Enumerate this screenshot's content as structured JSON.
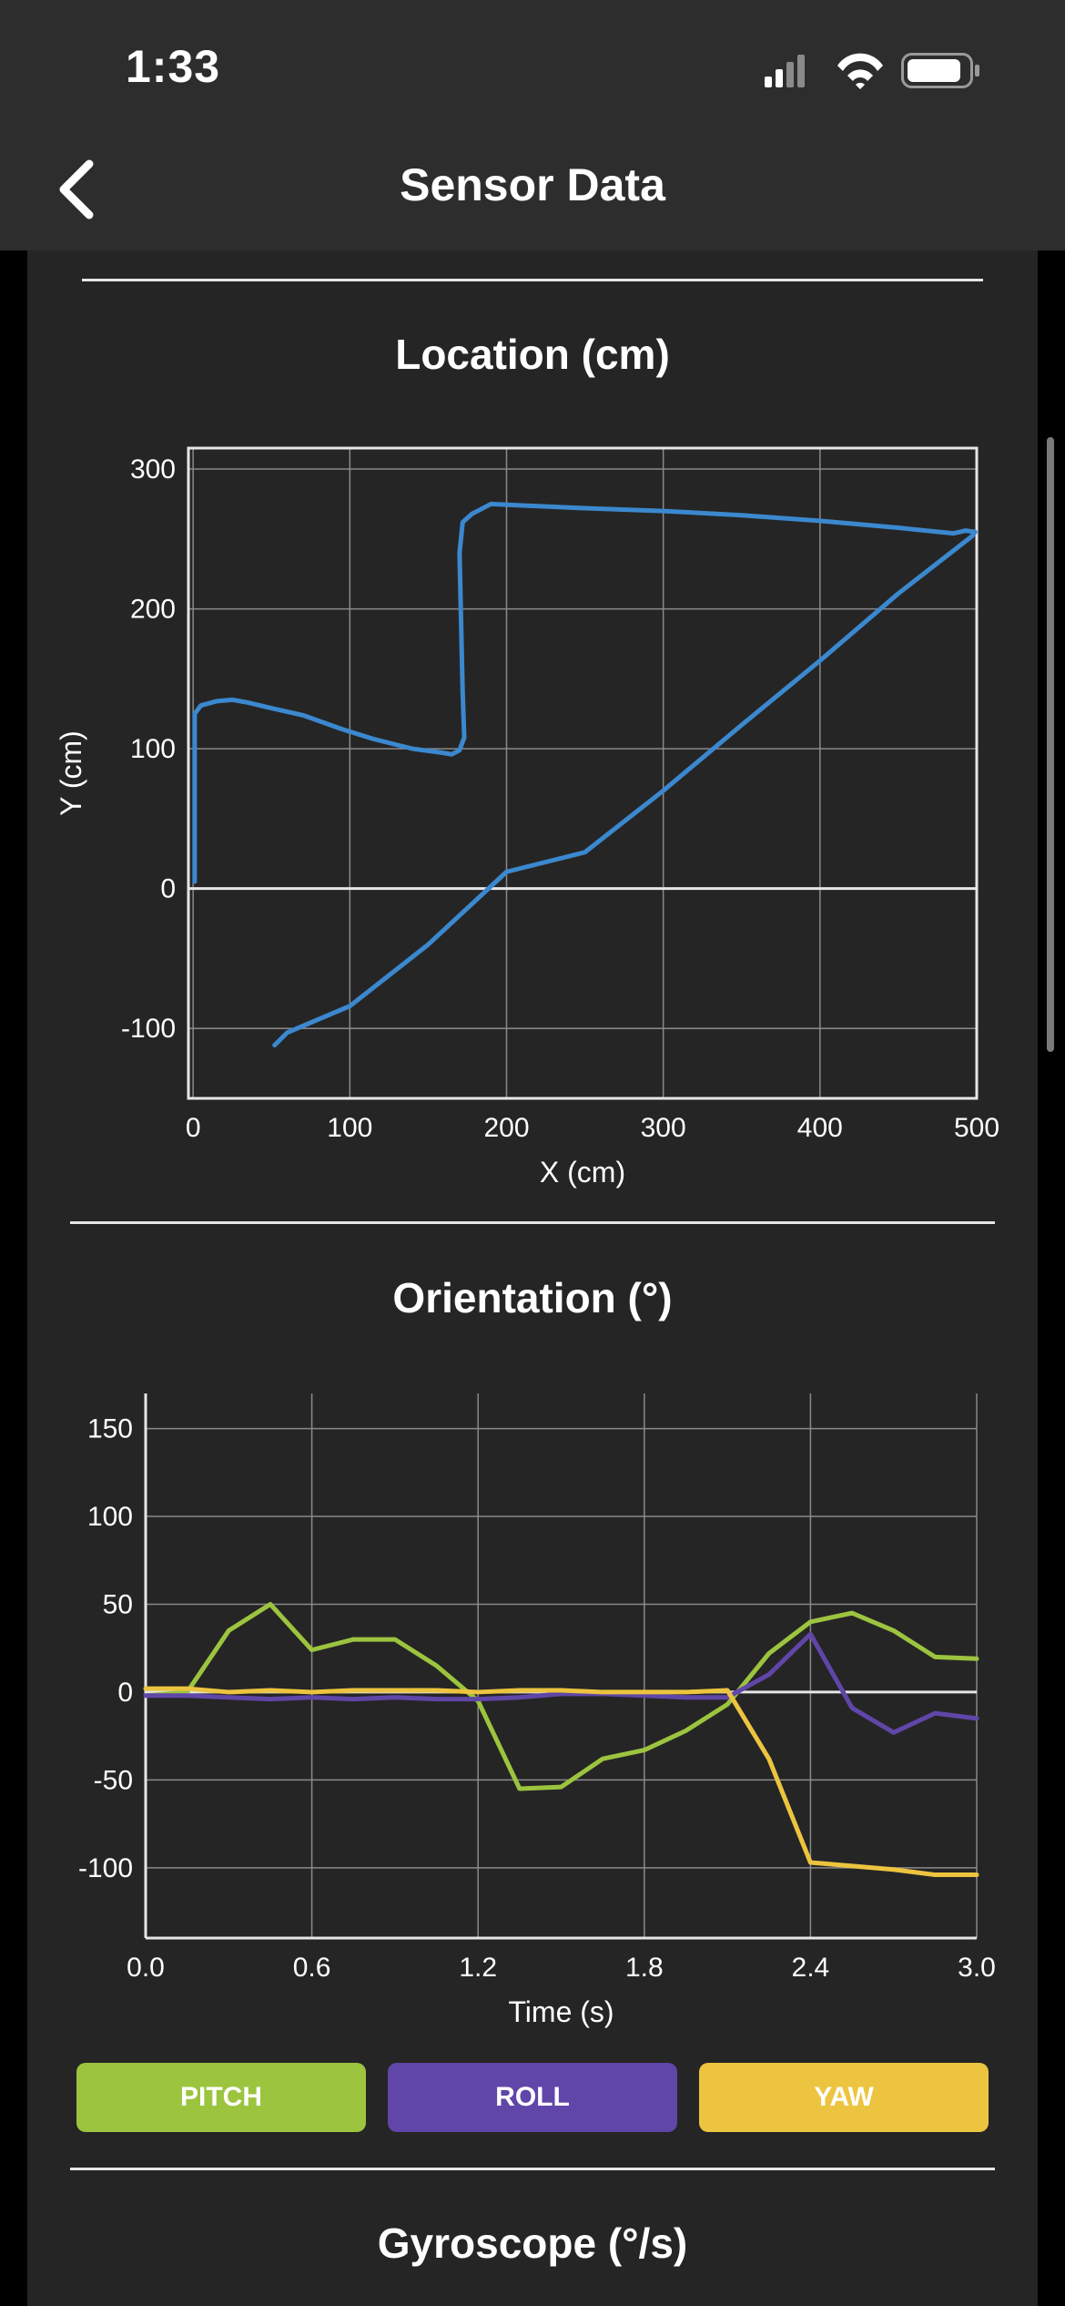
{
  "status_bar": {
    "time": "1:33",
    "icons": [
      "cellular-signal-icon",
      "wifi-icon",
      "battery-icon"
    ]
  },
  "header": {
    "title": "Sensor Data",
    "back_icon": "chevron-left-icon"
  },
  "sections": {
    "location_title": "Location (cm)",
    "orientation_title": "Orientation (°)",
    "gyroscope_title": "Gyroscope (°/s)"
  },
  "legend": {
    "pitch": "PITCH",
    "roll": "ROLL",
    "yaw": "YAW"
  },
  "colors": {
    "background": "#252525",
    "bar": "#2d2d2d",
    "location_line": "#3b88cf",
    "pitch": "#9cc43f",
    "roll": "#6046a8",
    "yaw": "#ecc43f"
  },
  "chart_data": [
    {
      "type": "line",
      "title": "Location (cm)",
      "xlabel": "X (cm)",
      "ylabel": "Y (cm)",
      "xlim": [
        -3,
        500
      ],
      "ylim": [
        -150,
        315
      ],
      "xticks": [
        0,
        100,
        200,
        300,
        400,
        500
      ],
      "yticks": [
        -100,
        0,
        100,
        200,
        300
      ],
      "grid": true,
      "series": [
        {
          "points": [
            [
              1,
              5
            ],
            [
              1,
              125
            ],
            [
              5,
              131
            ],
            [
              15,
              134
            ],
            [
              25,
              135
            ],
            [
              35,
              133
            ],
            [
              50,
              129
            ],
            [
              70,
              124
            ],
            [
              95,
              114
            ],
            [
              115,
              107
            ],
            [
              140,
              100
            ],
            [
              160,
              97
            ],
            [
              165,
              96
            ],
            [
              170,
              99
            ],
            [
              173,
              108
            ],
            [
              172,
              140
            ],
            [
              171,
              190
            ],
            [
              170,
              240
            ],
            [
              172,
              262
            ],
            [
              178,
              268
            ],
            [
              190,
              275
            ],
            [
              210,
              274
            ],
            [
              230,
              273
            ],
            [
              250,
              272
            ],
            [
              300,
              270
            ],
            [
              350,
              267
            ],
            [
              400,
              263
            ],
            [
              450,
              258
            ],
            [
              485,
              254
            ],
            [
              493,
              256
            ],
            [
              499,
              255
            ],
            [
              497,
              252
            ],
            [
              450,
              211
            ],
            [
              400,
              163
            ],
            [
              350,
              117
            ],
            [
              300,
              70
            ],
            [
              250,
              26
            ],
            [
              200,
              12
            ],
            [
              150,
              -40
            ],
            [
              100,
              -84
            ],
            [
              60,
              -103
            ],
            [
              52,
              -112
            ]
          ]
        }
      ]
    },
    {
      "type": "line",
      "title": "Orientation (°)",
      "xlabel": "Time (s)",
      "ylabel": "",
      "xlim": [
        0,
        3
      ],
      "ylim": [
        -140,
        170
      ],
      "xticks": [
        "0.0",
        "0.6",
        "1.2",
        "1.8",
        "2.4",
        "3.0"
      ],
      "yticks": [
        -100,
        -50,
        0,
        50,
        100,
        150
      ],
      "grid": true,
      "series": [
        {
          "name": "PITCH",
          "x": [
            0,
            0.15,
            0.3,
            0.45,
            0.6,
            0.75,
            0.9,
            1.05,
            1.2,
            1.35,
            1.5,
            1.65,
            1.8,
            1.95,
            2.1,
            2.25,
            2.4,
            2.55,
            2.7,
            2.85,
            3.0
          ],
          "values": [
            -2,
            0,
            35,
            50,
            24,
            30,
            30,
            15,
            -5,
            -55,
            -54,
            -38,
            -33,
            -22,
            -7,
            22,
            40,
            45,
            35,
            20,
            19
          ]
        },
        {
          "name": "ROLL",
          "x": [
            0,
            0.15,
            0.3,
            0.45,
            0.6,
            0.75,
            0.9,
            1.05,
            1.2,
            1.35,
            1.5,
            1.65,
            1.8,
            1.95,
            2.1,
            2.25,
            2.4,
            2.55,
            2.7,
            2.85,
            3.0
          ],
          "values": [
            -2,
            -2,
            -3,
            -4,
            -3,
            -4,
            -3,
            -4,
            -4,
            -3,
            -1,
            -1,
            -2,
            -3,
            -3,
            10,
            33,
            -9,
            -23,
            -12,
            -15
          ]
        },
        {
          "name": "YAW",
          "x": [
            0,
            0.15,
            0.3,
            0.45,
            0.6,
            0.75,
            0.9,
            1.05,
            1.2,
            1.35,
            1.5,
            1.65,
            1.8,
            1.95,
            2.1,
            2.25,
            2.4,
            2.55,
            2.7,
            2.85,
            3.0
          ],
          "values": [
            2,
            2,
            0,
            1,
            0,
            1,
            1,
            1,
            0,
            1,
            1,
            0,
            0,
            0,
            1,
            -38,
            -97,
            -99,
            -101,
            -104,
            -104
          ]
        }
      ]
    }
  ]
}
